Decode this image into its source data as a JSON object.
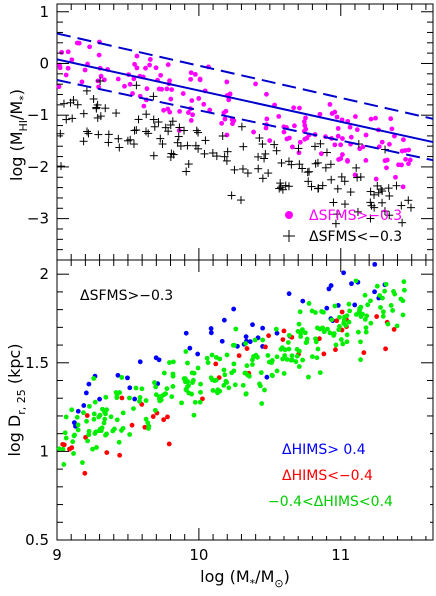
{
  "chart_data": [
    {
      "type": "scatter",
      "title": "",
      "xlabel": "",
      "ylabel": "log (M_HI/M_*)",
      "ylabel_parts": {
        "main": "log (M",
        "sub1": "HI",
        "mid": "/M",
        "sub2": "*",
        "end": ")"
      },
      "xlim": [
        9.0,
        11.65
      ],
      "ylim": [
        -3.8,
        1.15
      ],
      "x_ticks": [
        9,
        10,
        11
      ],
      "y_ticks": [
        -3,
        -2,
        -1,
        0,
        1
      ],
      "y_tick_labels": [
        "−3",
        "−2",
        "−1",
        "0",
        "1"
      ],
      "grid": false,
      "legend_position": "lower-right",
      "series": [
        {
          "name": "ΔSFMS>−0.3",
          "marker": "dot",
          "color": "#ff00ff",
          "n": 170,
          "relation": {
            "slope": -0.72,
            "intercept_at_9": 0.05,
            "scatter": 0.3
          }
        },
        {
          "name": "ΔSFMS<−0.3",
          "marker": "plus",
          "color": "#000000",
          "n": 150,
          "relation": {
            "slope": -0.75,
            "intercept_at_9": -0.85,
            "scatter": 0.32
          }
        }
      ],
      "fit_lines": [
        {
          "label": "fit",
          "style": "solid",
          "color": "#0000cc",
          "x": [
            9.0,
            11.65
          ],
          "y": [
            0.08,
            -1.52
          ]
        },
        {
          "label": "fit+scatter",
          "style": "dashed",
          "color": "#0000cc",
          "x": [
            9.0,
            11.65
          ],
          "y": [
            0.58,
            -1.07
          ]
        },
        {
          "label": "fit-scatter",
          "style": "dashed",
          "color": "#0000cc",
          "x": [
            9.0,
            11.65
          ],
          "y": [
            -0.32,
            -1.87
          ]
        }
      ]
    },
    {
      "type": "scatter",
      "title": "",
      "xlabel": "log (M_*/M_sun)",
      "xlabel_parts": {
        "main": "log (M",
        "sub1": "*",
        "mid": "/M",
        "sub2": "⊙",
        "end": ")"
      },
      "ylabel": "log D_r, 25 (kpc)",
      "ylabel_parts": {
        "main": "log D",
        "sub": "r, 25",
        "end": " (kpc)"
      },
      "xlim": [
        9.0,
        11.65
      ],
      "ylim": [
        0.5,
        2.08
      ],
      "x_ticks": [
        9,
        10,
        11
      ],
      "y_ticks": [
        0.5,
        1,
        1.5,
        2
      ],
      "y_tick_labels": [
        "0.5",
        "1",
        "1.5",
        "2"
      ],
      "grid": false,
      "annotation": "ΔSFMS>−0.3",
      "legend_position": "lower-right",
      "series": [
        {
          "name": "ΔHIMS> 0.4",
          "marker": "dot",
          "color": "#0000ff",
          "n": 55,
          "relation": {
            "slope": 0.33,
            "intercept_at_9": 1.22,
            "scatter": 0.1
          }
        },
        {
          "name": "ΔHIMS<−0.4",
          "marker": "dot",
          "color": "#ff0000",
          "n": 45,
          "relation": {
            "slope": 0.36,
            "intercept_at_9": 0.95,
            "scatter": 0.08
          }
        },
        {
          "name": "−0.4<ΔHIMS<0.4",
          "marker": "dot",
          "color": "#00ee00",
          "n": 280,
          "relation": {
            "slope": 0.33,
            "intercept_at_9": 1.05,
            "scatter": 0.09
          }
        }
      ]
    }
  ]
}
